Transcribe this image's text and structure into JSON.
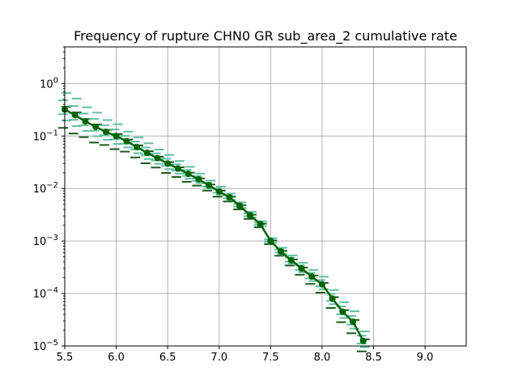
{
  "chart_data": {
    "type": "line",
    "title": "Frequency of rupture CHN0 GR sub_area_2 cumulative rate",
    "xlabel": "",
    "ylabel": "",
    "xlim": [
      5.5,
      9.4
    ],
    "ylim": [
      1e-05,
      5
    ],
    "yscale": "log",
    "grid": true,
    "legend": "none",
    "x_ticks": [
      "5.5",
      "6.0",
      "6.5",
      "7.0",
      "7.5",
      "8.0",
      "8.5",
      "9.0"
    ],
    "x_tick_values": [
      5.5,
      6.0,
      6.5,
      7.0,
      7.5,
      8.0,
      8.5,
      9.0
    ],
    "y_ticks": [
      {
        "base": "10",
        "exp": "0",
        "value": 1
      },
      {
        "base": "10",
        "exp": "−1",
        "value": 0.1
      },
      {
        "base": "10",
        "exp": "−2",
        "value": 0.01
      },
      {
        "base": "10",
        "exp": "−3",
        "value": 0.001
      },
      {
        "base": "10",
        "exp": "−4",
        "value": 0.0001
      },
      {
        "base": "10",
        "exp": "−5",
        "value": 1e-05
      }
    ],
    "colors": {
      "main_line": "#006400",
      "samples": "#5fbfa5",
      "mean_markers": "#1a5a1a",
      "grid": "#b0b0b0"
    },
    "series": [
      {
        "role": "mean",
        "x": [
          5.5,
          5.6,
          5.7,
          5.8,
          5.9,
          6.0,
          6.1,
          6.2,
          6.3,
          6.4,
          6.5,
          6.6,
          6.7,
          6.8,
          6.9,
          7.0,
          7.1,
          7.2,
          7.3,
          7.4,
          7.5,
          7.6,
          7.7,
          7.8,
          7.9,
          8.0,
          8.1,
          8.2,
          8.3,
          8.4
        ],
        "y": [
          0.32,
          0.25,
          0.19,
          0.15,
          0.12,
          0.1,
          0.08,
          0.062,
          0.048,
          0.038,
          0.03,
          0.024,
          0.019,
          0.015,
          0.0115,
          0.0088,
          0.0068,
          0.0047,
          0.0031,
          0.0021,
          0.001,
          0.00063,
          0.00043,
          0.0003,
          0.00021,
          0.00015,
          8e-05,
          4.5e-05,
          2.9e-05,
          1.25e-05
        ]
      }
    ],
    "sample_spread": [
      0.35,
      0.35,
      0.3,
      0.3,
      0.25,
      0.25,
      0.2,
      0.2,
      0.2,
      0.18,
      0.18,
      0.16,
      0.15,
      0.12,
      0.1,
      0.1,
      0.08,
      0.07,
      0.07,
      0.06,
      0.06,
      0.08,
      0.1,
      0.12,
      0.14,
      0.16,
      0.18,
      0.2,
      0.22,
      0.2
    ]
  }
}
